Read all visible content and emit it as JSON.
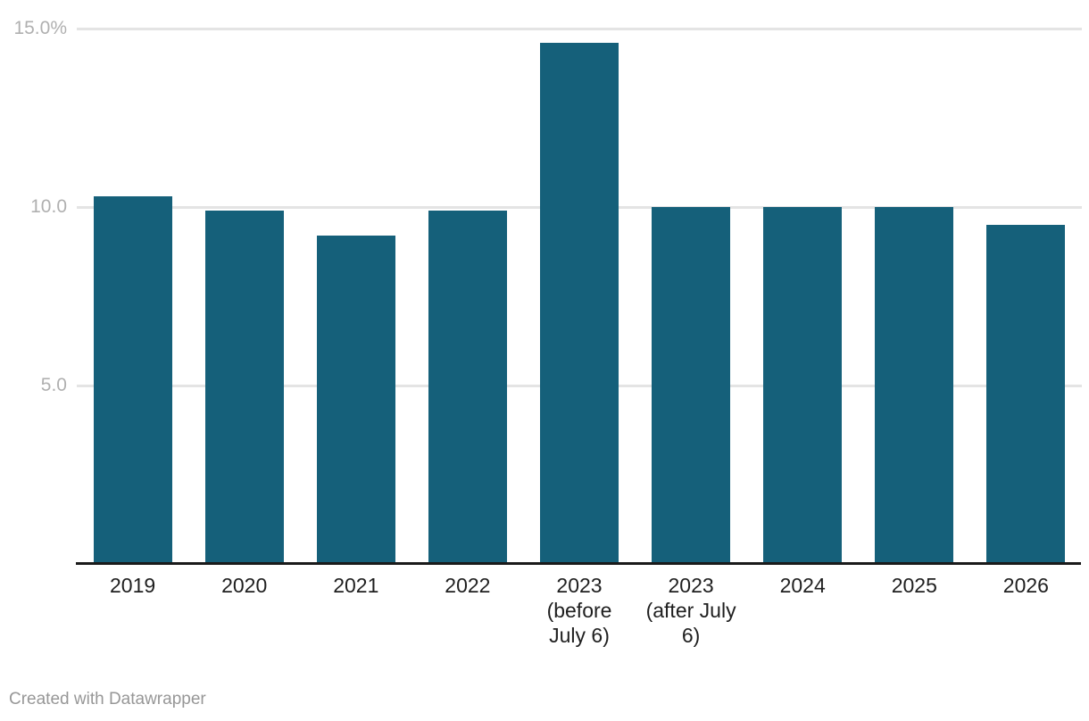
{
  "chart_data": {
    "type": "bar",
    "title": "",
    "xlabel": "",
    "ylabel": "",
    "unit": "%",
    "grid": "horizontal",
    "legend": "none",
    "ylim": [
      0,
      15.8
    ],
    "categories": [
      "2019",
      "2020",
      "2021",
      "2022",
      "2023 (before July 6)",
      "2023 (after July 6)",
      "2024",
      "2025",
      "2026"
    ],
    "category_lines": [
      [
        "2019"
      ],
      [
        "2020"
      ],
      [
        "2021"
      ],
      [
        "2022"
      ],
      [
        "2023",
        "(before",
        "July 6)"
      ],
      [
        "2023",
        "(after July",
        "6)"
      ],
      [
        "2024"
      ],
      [
        "2025"
      ],
      [
        "2026"
      ]
    ],
    "values": [
      10.3,
      9.9,
      9.2,
      9.9,
      14.6,
      10.0,
      10.0,
      10.0,
      9.5
    ],
    "yticks": [
      {
        "label": "15.0%",
        "value": 15
      },
      {
        "label": "10.0",
        "value": 10
      },
      {
        "label": "5.0",
        "value": 5
      }
    ]
  },
  "colors": {
    "bar": "#15607a",
    "axis_line": "#1a1a1a",
    "gridline": "#e4e4e4",
    "tick_label": "#b0b0b0",
    "category_label": "#1f1f1f",
    "credit_text": "#979797",
    "background": "#ffffff"
  },
  "footer": {
    "credit": "Created with Datawrapper"
  }
}
